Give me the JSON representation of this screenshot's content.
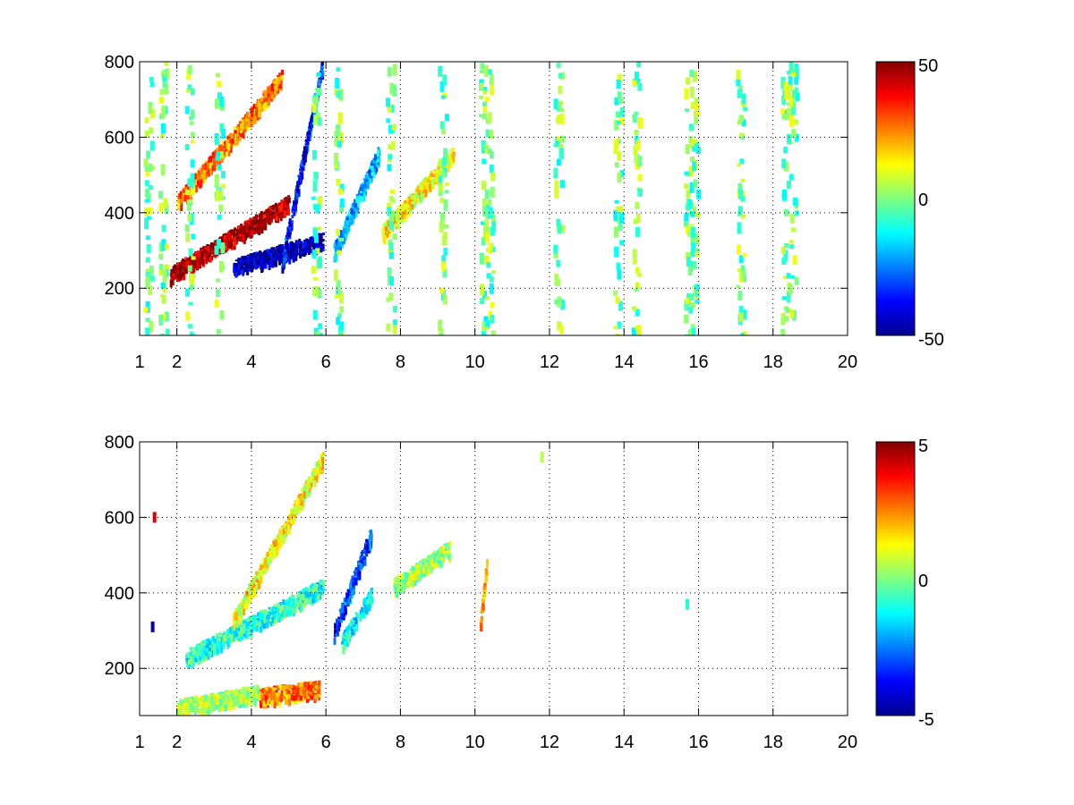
{
  "chart_data": [
    {
      "type": "heatmap",
      "title": "",
      "xlabel": "",
      "ylabel": "",
      "xlim": [
        1,
        20
      ],
      "ylim": [
        75,
        800
      ],
      "x_ticks": [
        "1",
        "2",
        "4",
        "6",
        "8",
        "10",
        "12",
        "14",
        "16",
        "18",
        "20"
      ],
      "y_ticks": [
        "200",
        "400",
        "600",
        "800"
      ],
      "grid": true,
      "colormap": "jet",
      "colorbar": {
        "min": -50,
        "max": 50,
        "ticks": [
          "50",
          "0",
          "-50"
        ]
      },
      "background": "#ffffff",
      "features": [
        {
          "x": [
            1.8,
            5.0
          ],
          "y_start": 240,
          "y_end": 430,
          "value": 45,
          "note": "diagonal band"
        },
        {
          "x": [
            3.5,
            5.9
          ],
          "y_start": 260,
          "y_end": 330,
          "value": -45
        },
        {
          "x": [
            4.8,
            5.9
          ],
          "y_start": 270,
          "y_end": 800,
          "value": -35
        },
        {
          "x": [
            2.0,
            4.8
          ],
          "y_start": 430,
          "y_end": 760,
          "value": 25
        },
        {
          "x": [
            6.2,
            7.4
          ],
          "y_start": 300,
          "y_end": 560,
          "value": -20
        },
        {
          "x": [
            7.5,
            9.4
          ],
          "y_start": 350,
          "y_end": 560,
          "value": 12
        }
      ],
      "vertical_streaks_x": [
        1.2,
        1.6,
        2.3,
        3.1,
        5.7,
        6.3,
        7.7,
        9.1,
        10.2,
        10.35,
        12.2,
        13.8,
        14.3,
        15.7,
        15.85,
        17.1,
        18.3,
        18.5
      ],
      "sparse_values": [
        -10,
        0,
        8
      ]
    },
    {
      "type": "heatmap",
      "title": "",
      "xlabel": "",
      "ylabel": "",
      "xlim": [
        1,
        20
      ],
      "ylim": [
        75,
        800
      ],
      "x_ticks": [
        "1",
        "2",
        "4",
        "6",
        "8",
        "10",
        "12",
        "14",
        "16",
        "18",
        "20"
      ],
      "y_ticks": [
        "200",
        "400",
        "600",
        "800"
      ],
      "grid": true,
      "colormap": "jet",
      "colorbar": {
        "min": -5,
        "max": 5,
        "ticks": [
          "5",
          "0",
          "-5"
        ]
      },
      "background": "#ffffff",
      "features": [
        {
          "x": [
            2.2,
            5.9
          ],
          "y_start": 230,
          "y_end": 420,
          "value": -0.8
        },
        {
          "x": [
            3.5,
            5.9
          ],
          "y_start": 330,
          "y_end": 760,
          "value": 1.2
        },
        {
          "x": [
            6.2,
            7.2
          ],
          "y_start": 300,
          "y_end": 560,
          "value": -3.2
        },
        {
          "x": [
            6.4,
            7.2
          ],
          "y_start": 270,
          "y_end": 400,
          "value": -1.2
        },
        {
          "x": [
            2.0,
            4.2
          ],
          "y_start": 100,
          "y_end": 140,
          "value": 0.4
        },
        {
          "x": [
            4.2,
            5.8
          ],
          "y_start": 130,
          "y_end": 150,
          "value": 2.5
        },
        {
          "x": [
            7.8,
            9.3
          ],
          "y_start": 420,
          "y_end": 520,
          "value": 0.3
        },
        {
          "x": [
            10.1,
            10.3
          ],
          "y_start": 300,
          "y_end": 480,
          "value": 2.0
        }
      ],
      "isolated_points": [
        {
          "x": 1.4,
          "y": 600,
          "value": 4.0
        },
        {
          "x": 1.35,
          "y": 310,
          "value": -4.5
        },
        {
          "x": 11.8,
          "y": 760,
          "value": 0.5
        },
        {
          "x": 15.7,
          "y": 370,
          "value": -1.0
        }
      ]
    }
  ]
}
